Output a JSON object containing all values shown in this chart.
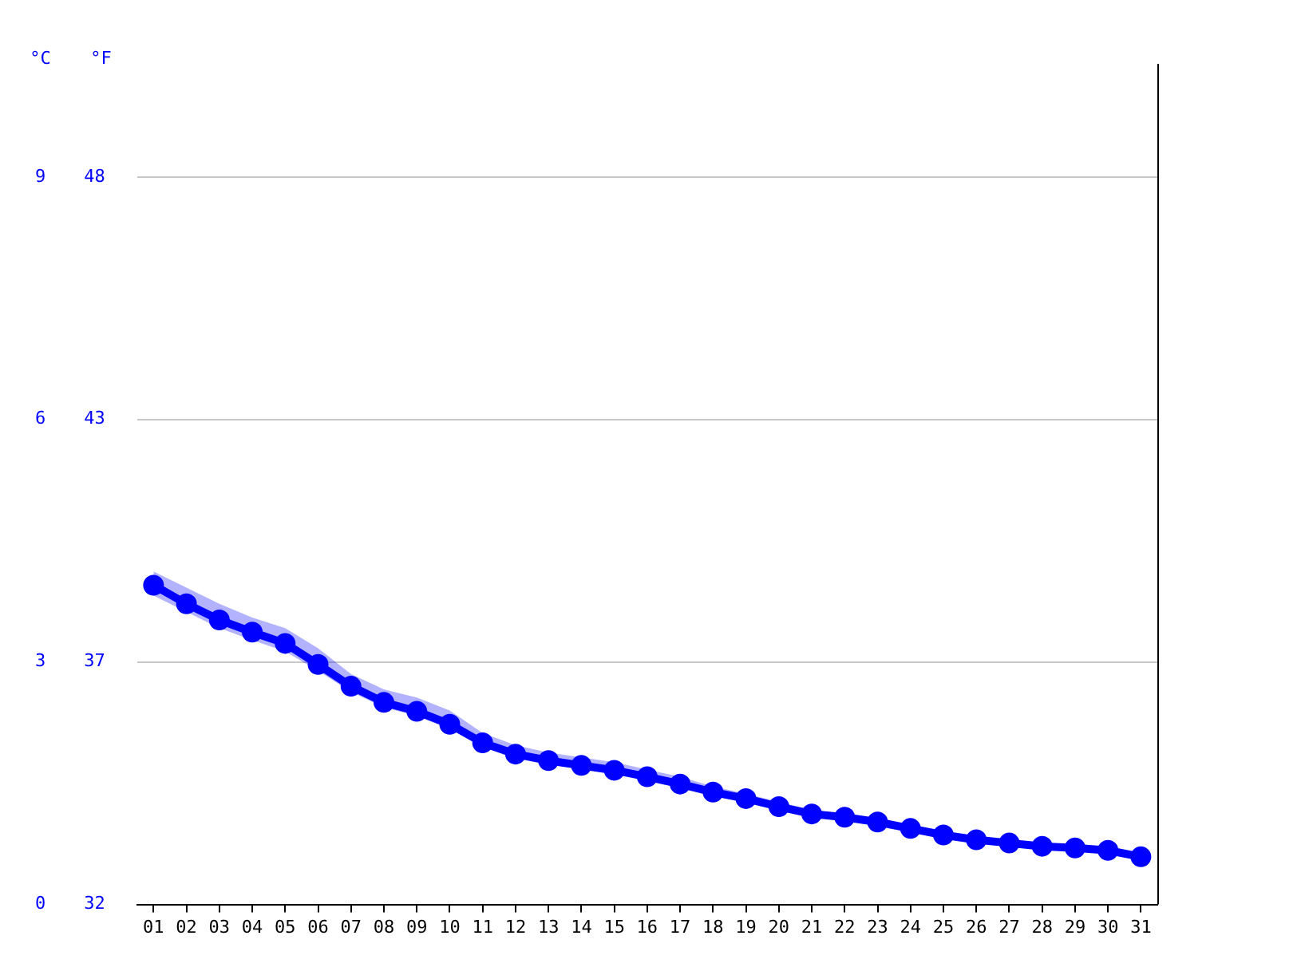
{
  "chart_data": {
    "type": "line",
    "ylabel": "°C",
    "y2label": "°F",
    "categories": [
      "01",
      "02",
      "03",
      "04",
      "05",
      "06",
      "07",
      "08",
      "09",
      "10",
      "11",
      "12",
      "13",
      "14",
      "15",
      "16",
      "17",
      "18",
      "19",
      "20",
      "21",
      "22",
      "23",
      "24",
      "25",
      "26",
      "27",
      "28",
      "29",
      "30",
      "31"
    ],
    "series": [
      {
        "color": "#0000ff",
        "values": [
          3.95,
          3.72,
          3.52,
          3.37,
          3.23,
          2.97,
          2.7,
          2.5,
          2.39,
          2.23,
          2.0,
          1.86,
          1.78,
          1.72,
          1.66,
          1.58,
          1.49,
          1.39,
          1.31,
          1.21,
          1.12,
          1.08,
          1.02,
          0.94,
          0.86,
          0.8,
          0.76,
          0.72,
          0.7,
          0.67,
          0.59
        ],
        "lower": [
          3.82,
          3.62,
          3.42,
          3.27,
          3.13,
          2.89,
          2.63,
          2.44,
          2.33,
          2.17,
          1.95,
          1.82,
          1.74,
          1.68,
          1.62,
          1.54,
          1.45,
          1.35,
          1.28,
          1.18,
          1.09,
          1.05,
          0.99,
          0.91,
          0.84,
          0.78,
          0.74,
          0.7,
          0.68,
          0.65,
          0.57
        ],
        "upper": [
          4.12,
          3.92,
          3.72,
          3.55,
          3.42,
          3.17,
          2.85,
          2.66,
          2.56,
          2.4,
          2.12,
          1.97,
          1.88,
          1.82,
          1.76,
          1.67,
          1.58,
          1.46,
          1.37,
          1.27,
          1.17,
          1.12,
          1.06,
          0.98,
          0.9,
          0.83,
          0.79,
          0.75,
          0.73,
          0.7,
          0.62
        ]
      }
    ],
    "ylim": [
      0,
      10.4
    ],
    "yticks": [
      0,
      3,
      6,
      9
    ],
    "y2lim": [
      32,
      50.72
    ],
    "y2ticks": [
      32,
      {
        "value": 37.4,
        "label": "37"
      },
      {
        "value": 42.8,
        "label": "43"
      },
      {
        "value": 48.2,
        "label": "48"
      }
    ],
    "grid": "y",
    "legend": false,
    "marker": "circle",
    "line_style": "solid"
  }
}
